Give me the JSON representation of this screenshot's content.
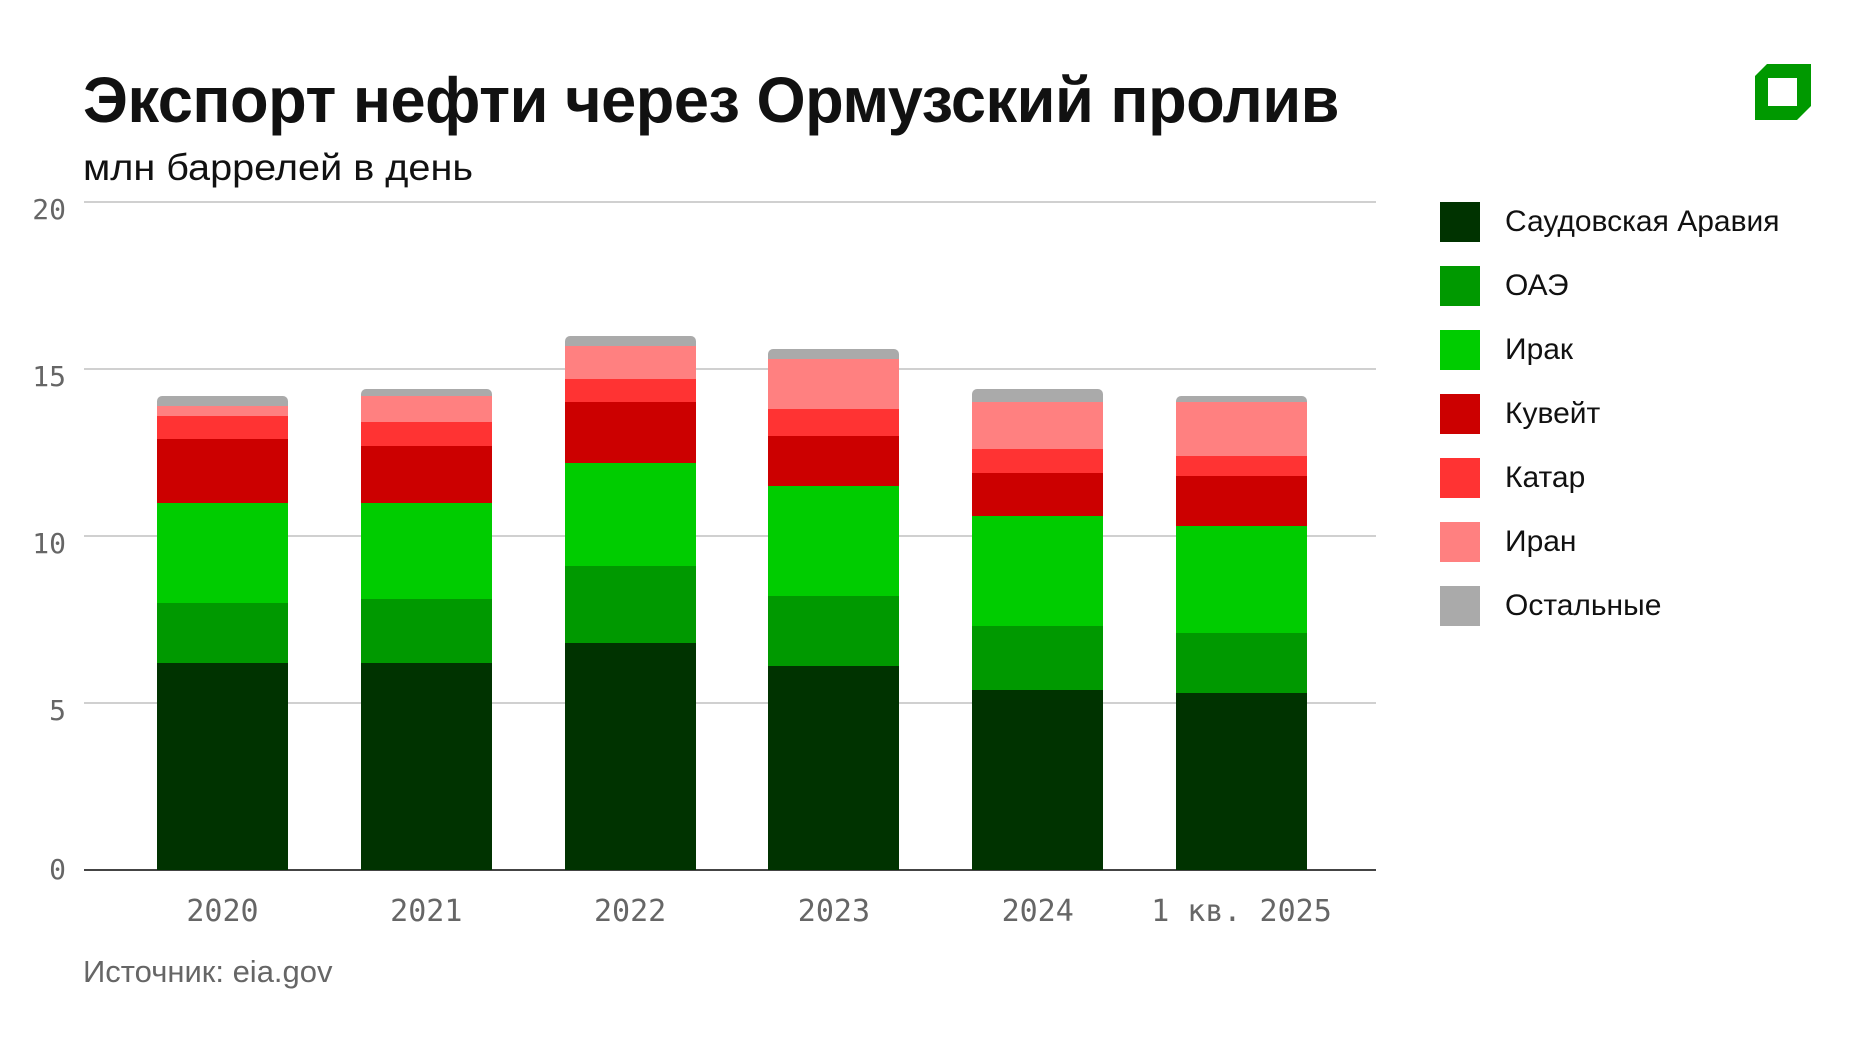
{
  "header": {
    "title": "Экспорт нефти через Ормузский пролив",
    "subtitle": "млн баррелей в день",
    "logo": "green-square-logo-icon"
  },
  "footer": {
    "source": "Источник: eia.gov"
  },
  "colors": {
    "logo": "#009900",
    "gridline": "#d0d0d0",
    "axis": "#444444",
    "tick_text": "#666666"
  },
  "chart_data": {
    "type": "bar",
    "stacked": true,
    "title": "Экспорт нефти через Ормузский пролив",
    "subtitle": "млн баррелей в день",
    "xlabel": "",
    "ylabel": "",
    "ylim": [
      0,
      20
    ],
    "yticks": [
      0,
      5,
      10,
      15,
      20
    ],
    "grid": true,
    "legend_position": "right",
    "categories": [
      "2020",
      "2021",
      "2022",
      "2023",
      "2024",
      "1 кв. 2025"
    ],
    "series": [
      {
        "name": "Саудовская Аравия",
        "color": "#003300",
        "values": [
          6.2,
          6.2,
          6.8,
          6.1,
          5.4,
          5.3
        ]
      },
      {
        "name": "ОАЭ",
        "color": "#009900",
        "values": [
          1.8,
          1.9,
          2.3,
          2.1,
          1.9,
          1.8
        ]
      },
      {
        "name": "Ирак",
        "color": "#00CC00",
        "values": [
          3.0,
          2.9,
          3.1,
          3.3,
          3.3,
          3.2
        ]
      },
      {
        "name": "Кувейт",
        "color": "#CC0000",
        "values": [
          1.9,
          1.7,
          1.8,
          1.5,
          1.3,
          1.5
        ]
      },
      {
        "name": "Катар",
        "color": "#FF3333",
        "values": [
          0.7,
          0.7,
          0.7,
          0.8,
          0.7,
          0.6
        ]
      },
      {
        "name": "Иран",
        "color": "#FF8080",
        "values": [
          0.3,
          0.8,
          1.0,
          1.5,
          1.4,
          1.6
        ]
      },
      {
        "name": "Остальные",
        "color": "#AAAAAA",
        "values": [
          0.3,
          0.2,
          0.3,
          0.3,
          0.4,
          0.2
        ]
      }
    ],
    "source": "Источник: eia.gov"
  }
}
